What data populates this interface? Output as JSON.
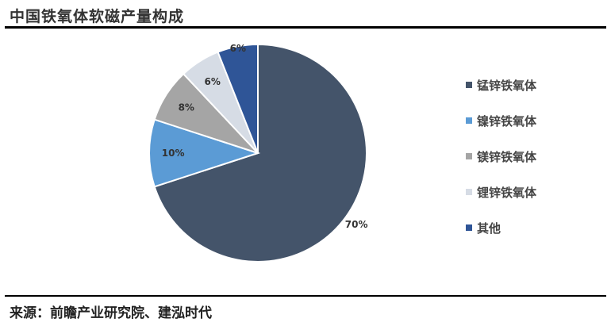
{
  "title": "中国铁氧体软磁产量构成",
  "source": "来源：前瞻产业研究院、建泓时代",
  "chart_data": {
    "type": "pie",
    "title": "中国铁氧体软磁产量构成",
    "categories": [
      "锰锌铁氧体",
      "镍锌铁氧体",
      "镁锌铁氧体",
      "锂锌铁氧体",
      "其他"
    ],
    "values": [
      70,
      10,
      8,
      6,
      6
    ],
    "labels": [
      "70%",
      "10%",
      "8%",
      "6%",
      "6%"
    ],
    "colors": [
      "#44546a",
      "#5b9bd5",
      "#a5a5a5",
      "#d6dce5",
      "#2f5597"
    ],
    "start": "12 o'clock, clockwise",
    "legend": "right"
  }
}
